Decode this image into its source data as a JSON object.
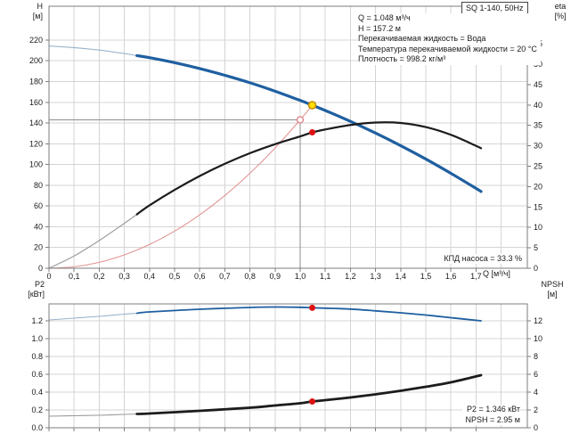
{
  "title_box": {
    "label": "SQ 1-140, 50Hz"
  },
  "annotations": {
    "duty": [
      "Q = 1.048 м³/ч",
      "H = 157.2 м",
      "Перекачиваемая жидкость = Вода",
      "Температура перекачиваемой жидкости = 20 °C",
      "Плотность = 998.2 кг/м³"
    ],
    "efficiency": "КПД насоса = 33.3 %",
    "p2_value": "P2 = 1.346 кВт",
    "npsh_value": "NPSH = 2.95 м"
  },
  "axes_titles": {
    "h": [
      "H",
      "[м]"
    ],
    "eta": [
      "eta",
      "[%]"
    ],
    "p2": [
      "P2",
      "[кВт]"
    ],
    "npsh": [
      "NPSH",
      "[м]"
    ],
    "q": "Q [м³/ч]"
  },
  "colors": {
    "grid": "#d4d4d4",
    "frame": "#7d7d7d",
    "text": "#1a1a1a",
    "crosshair": "#8c8c8c"
  },
  "chart_data": [
    {
      "type": "line",
      "title": "SQ 1-140, 50Hz",
      "xlabel": "Q [м³/ч]",
      "ylabel_left": "H [м]",
      "ylabel_right": "eta [%]",
      "xlim": [
        0,
        1.9043
      ],
      "ylim_left": [
        0,
        252.6
      ],
      "ylim_right": [
        0,
        64.2
      ],
      "grid_extra_x": [
        1.8
      ],
      "xticks": [
        [
          0,
          "0"
        ],
        [
          0.1,
          "0,1"
        ],
        [
          0.2,
          "0,2"
        ],
        [
          0.3,
          "0,3"
        ],
        [
          0.4,
          "0,4"
        ],
        [
          0.5,
          "0,5"
        ],
        [
          0.6,
          "0,6"
        ],
        [
          0.7,
          "0,7"
        ],
        [
          0.8,
          "0,8"
        ],
        [
          0.9,
          "0,9"
        ],
        [
          1.0,
          "1,0"
        ],
        [
          1.1,
          "1,1"
        ],
        [
          1.2,
          "1,2"
        ],
        [
          1.3,
          "1,3"
        ],
        [
          1.4,
          "1,4"
        ],
        [
          1.5,
          "1,5"
        ],
        [
          1.6,
          "1,6"
        ],
        [
          1.7,
          "1,7"
        ]
      ],
      "yticks_left": [
        [
          0,
          "0"
        ],
        [
          20,
          "20"
        ],
        [
          40,
          "40"
        ],
        [
          60,
          "60"
        ],
        [
          80,
          "80"
        ],
        [
          100,
          "100"
        ],
        [
          120,
          "120"
        ],
        [
          140,
          "140"
        ],
        [
          160,
          "160"
        ],
        [
          180,
          "180"
        ],
        [
          200,
          "200"
        ],
        [
          220,
          "220"
        ]
      ],
      "yticks_right": [
        [
          0,
          "0"
        ],
        [
          5,
          "5"
        ],
        [
          10,
          "10"
        ],
        [
          15,
          "15"
        ],
        [
          20,
          "20"
        ],
        [
          25,
          "25"
        ],
        [
          30,
          "30"
        ],
        [
          35,
          "35"
        ],
        [
          40,
          "40"
        ],
        [
          45,
          "45"
        ],
        [
          50,
          "50"
        ],
        [
          55,
          "55"
        ]
      ],
      "crosshair": {
        "x": 1.0,
        "y_left": 143.1
      },
      "series": [
        {
          "name": "system-curve",
          "axis": "left",
          "color": "#e29494",
          "width": 1.1,
          "points": [
            [
              0,
              0
            ],
            [
              0.1,
              1.4
            ],
            [
              0.2,
              5.7
            ],
            [
              0.3,
              12.9
            ],
            [
              0.4,
              22.9
            ],
            [
              0.5,
              35.8
            ],
            [
              0.6,
              51.5
            ],
            [
              0.7,
              70.1
            ],
            [
              0.8,
              91.6
            ],
            [
              0.9,
              115.9
            ],
            [
              1.0,
              143.1
            ],
            [
              1.048,
              157.2
            ]
          ]
        },
        {
          "name": "head-curve-lowflow",
          "axis": "left",
          "color": "#9ab3cc",
          "width": 1.1,
          "points": [
            [
              0,
              214.3
            ],
            [
              0.1,
              212.7
            ],
            [
              0.2,
              210.3
            ],
            [
              0.3,
              207.0
            ],
            [
              0.35,
              205.0
            ]
          ]
        },
        {
          "name": "head-curve",
          "axis": "left",
          "color": "#1f5fa0",
          "width": 3.2,
          "points": [
            [
              0.35,
              205.0
            ],
            [
              0.4,
              203.0
            ],
            [
              0.5,
              198.2
            ],
            [
              0.6,
              192.5
            ],
            [
              0.7,
              186.0
            ],
            [
              0.8,
              178.8
            ],
            [
              0.9,
              170.7
            ],
            [
              1.0,
              161.8
            ],
            [
              1.048,
              157.2
            ],
            [
              1.1,
              152.1
            ],
            [
              1.2,
              141.6
            ],
            [
              1.3,
              130.3
            ],
            [
              1.4,
              118.2
            ],
            [
              1.5,
              105.3
            ],
            [
              1.6,
              91.5
            ],
            [
              1.7,
              77.0
            ],
            [
              1.72,
              74.0
            ]
          ]
        },
        {
          "name": "efficiency-curve-lowflow",
          "axis": "right",
          "color": "#9a9a9a",
          "width": 1.1,
          "points": [
            [
              0,
              0
            ],
            [
              0.1,
              3.0
            ],
            [
              0.2,
              6.8
            ],
            [
              0.3,
              11.0
            ],
            [
              0.35,
              13.2
            ]
          ]
        },
        {
          "name": "efficiency-curve",
          "axis": "right",
          "color": "#1c1c1c",
          "width": 2.2,
          "points": [
            [
              0.35,
              13.2
            ],
            [
              0.4,
              15.4
            ],
            [
              0.5,
              19.2
            ],
            [
              0.6,
              22.6
            ],
            [
              0.7,
              25.6
            ],
            [
              0.8,
              28.2
            ],
            [
              0.9,
              30.4
            ],
            [
              1.0,
              32.3
            ],
            [
              1.048,
              33.3
            ],
            [
              1.1,
              34.0
            ],
            [
              1.2,
              35.1
            ],
            [
              1.3,
              35.7
            ],
            [
              1.4,
              35.6
            ],
            [
              1.5,
              34.6
            ],
            [
              1.6,
              32.7
            ],
            [
              1.7,
              30.0
            ],
            [
              1.72,
              29.4
            ]
          ]
        }
      ],
      "markers": [
        {
          "name": "duty-point-specified",
          "axis": "left",
          "x": 1.0,
          "y": 143.1,
          "r": 3.5,
          "fill": "#ffffff",
          "stroke": "#e08888",
          "sw": 1.4
        },
        {
          "name": "operating-point-head",
          "axis": "left",
          "x": 1.048,
          "y": 157.2,
          "r": 4,
          "fill": "#ffdf00",
          "stroke": "#c88a00",
          "sw": 1.5
        },
        {
          "name": "operating-point-eta",
          "axis": "right",
          "x": 1.048,
          "y": 33.3,
          "r": 3.5,
          "fill": "#dd1111",
          "stroke": "none",
          "sw": 0
        }
      ]
    },
    {
      "type": "line",
      "title": "",
      "xlabel": "Q [м³/ч]",
      "ylabel_left": "P2 [кВт]",
      "ylabel_right": "NPSH [м]",
      "xlim": [
        0,
        1.9043
      ],
      "ylim_left": [
        0,
        1.39
      ],
      "ylim_right": [
        0,
        13.9
      ],
      "grid_extra_x": [
        1.8
      ],
      "xticks": [
        [
          0,
          "0"
        ],
        [
          0.1,
          ""
        ],
        [
          0.2,
          ""
        ],
        [
          0.3,
          ""
        ],
        [
          0.4,
          ""
        ],
        [
          0.5,
          ""
        ],
        [
          0.6,
          ""
        ],
        [
          0.7,
          ""
        ],
        [
          0.8,
          ""
        ],
        [
          0.9,
          ""
        ],
        [
          1.0,
          ""
        ],
        [
          1.1,
          ""
        ],
        [
          1.2,
          ""
        ],
        [
          1.3,
          ""
        ],
        [
          1.4,
          ""
        ],
        [
          1.5,
          ""
        ],
        [
          1.6,
          ""
        ],
        [
          1.7,
          ""
        ]
      ],
      "yticks_left": [
        [
          0,
          "0.0"
        ],
        [
          0.2,
          "0.2"
        ],
        [
          0.4,
          "0.4"
        ],
        [
          0.6,
          "0.6"
        ],
        [
          0.8,
          "0.8"
        ],
        [
          1.0,
          "1.0"
        ],
        [
          1.2,
          "1.2"
        ]
      ],
      "yticks_right": [
        [
          0,
          "0"
        ],
        [
          2,
          "2"
        ],
        [
          4,
          "4"
        ],
        [
          6,
          "6"
        ],
        [
          8,
          "8"
        ],
        [
          10,
          "10"
        ],
        [
          12,
          "12"
        ]
      ],
      "crosshair": null,
      "series": [
        {
          "name": "p2-curve-lowflow",
          "axis": "left",
          "color": "#9ab3cc",
          "width": 1.1,
          "points": [
            [
              0,
              1.21
            ],
            [
              0.1,
              1.23
            ],
            [
              0.2,
              1.25
            ],
            [
              0.3,
              1.275
            ],
            [
              0.35,
              1.285
            ]
          ]
        },
        {
          "name": "p2-curve",
          "axis": "left",
          "color": "#1f5fa0",
          "width": 1.8,
          "points": [
            [
              0.35,
              1.285
            ],
            [
              0.4,
              1.3
            ],
            [
              0.6,
              1.33
            ],
            [
              0.8,
              1.35
            ],
            [
              0.9,
              1.355
            ],
            [
              1.0,
              1.352
            ],
            [
              1.048,
              1.346
            ],
            [
              1.1,
              1.342
            ],
            [
              1.2,
              1.332
            ],
            [
              1.3,
              1.312
            ],
            [
              1.4,
              1.29
            ],
            [
              1.5,
              1.265
            ],
            [
              1.6,
              1.235
            ],
            [
              1.72,
              1.2
            ]
          ]
        },
        {
          "name": "npsh-curve-lowflow",
          "axis": "right",
          "color": "#9a9a9a",
          "width": 1.1,
          "points": [
            [
              0,
              1.3
            ],
            [
              0.1,
              1.35
            ],
            [
              0.2,
              1.4
            ],
            [
              0.3,
              1.5
            ],
            [
              0.35,
              1.55
            ]
          ]
        },
        {
          "name": "npsh-curve",
          "axis": "right",
          "color": "#1c1c1c",
          "width": 2.8,
          "points": [
            [
              0.35,
              1.55
            ],
            [
              0.4,
              1.6
            ],
            [
              0.6,
              1.9
            ],
            [
              0.8,
              2.25
            ],
            [
              0.9,
              2.5
            ],
            [
              1.0,
              2.75
            ],
            [
              1.048,
              2.95
            ],
            [
              1.1,
              3.1
            ],
            [
              1.2,
              3.4
            ],
            [
              1.3,
              3.75
            ],
            [
              1.4,
              4.15
            ],
            [
              1.5,
              4.6
            ],
            [
              1.6,
              5.1
            ],
            [
              1.72,
              5.9
            ]
          ]
        }
      ],
      "markers": [
        {
          "name": "operating-point-p2",
          "axis": "left",
          "x": 1.048,
          "y": 1.346,
          "r": 3.5,
          "fill": "#dd1111",
          "stroke": "none",
          "sw": 0
        },
        {
          "name": "operating-point-npsh",
          "axis": "right",
          "x": 1.048,
          "y": 2.95,
          "r": 3.5,
          "fill": "#dd1111",
          "stroke": "none",
          "sw": 0
        }
      ]
    }
  ]
}
